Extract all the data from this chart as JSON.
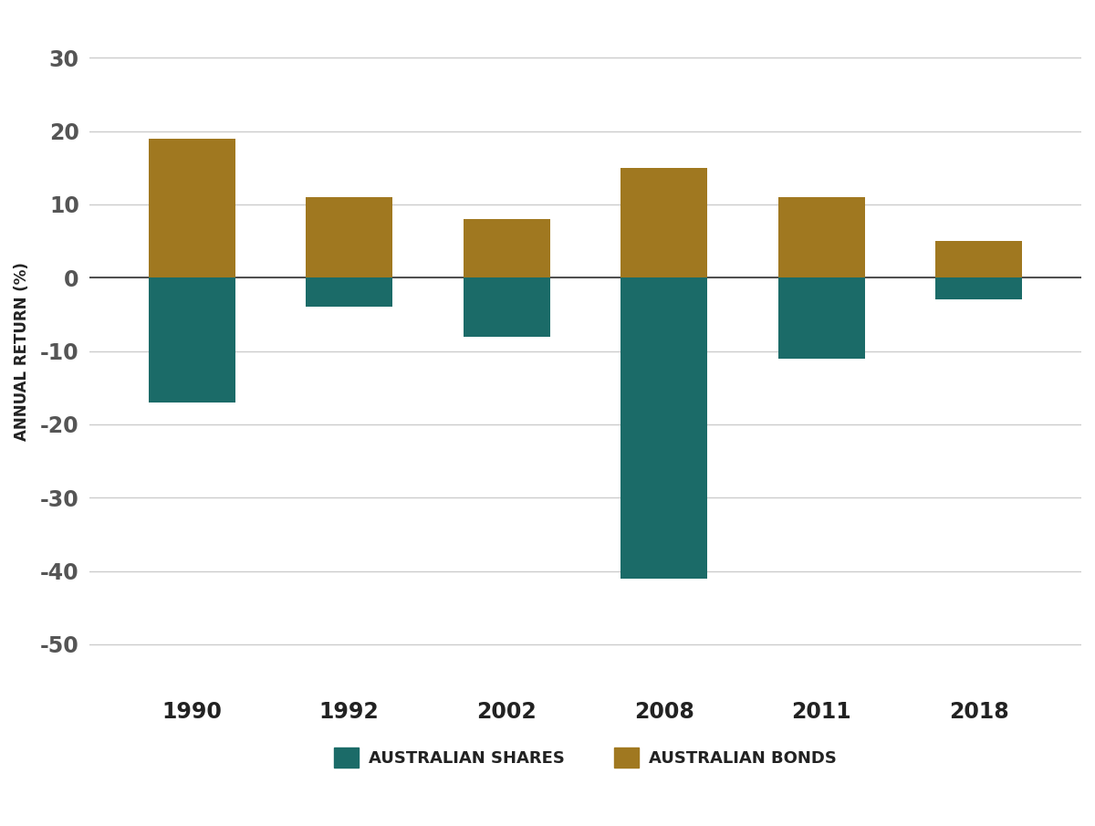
{
  "years": [
    "1990",
    "1992",
    "2002",
    "2008",
    "2011",
    "2018"
  ],
  "shares": [
    -17,
    -4,
    -8,
    -41,
    -11,
    -3
  ],
  "bonds": [
    19,
    11,
    8,
    15,
    11,
    5
  ],
  "shares_color": "#1b6b68",
  "bonds_color": "#a07820",
  "background_color": "#ffffff",
  "grid_color": "#cccccc",
  "ylabel": "ANNUAL RETURN (%)",
  "yticks": [
    30,
    20,
    10,
    0,
    -10,
    -20,
    -30,
    -40,
    -50
  ],
  "ylim": [
    -56,
    36
  ],
  "legend_shares": "AUSTRALIAN SHARES",
  "legend_bonds": "AUSTRALIAN BONDS",
  "bar_width": 0.55,
  "tick_label_fontsize": 17,
  "ylabel_fontsize": 12,
  "legend_fontsize": 13,
  "xlim_left": -0.65,
  "xlim_right": 5.65
}
